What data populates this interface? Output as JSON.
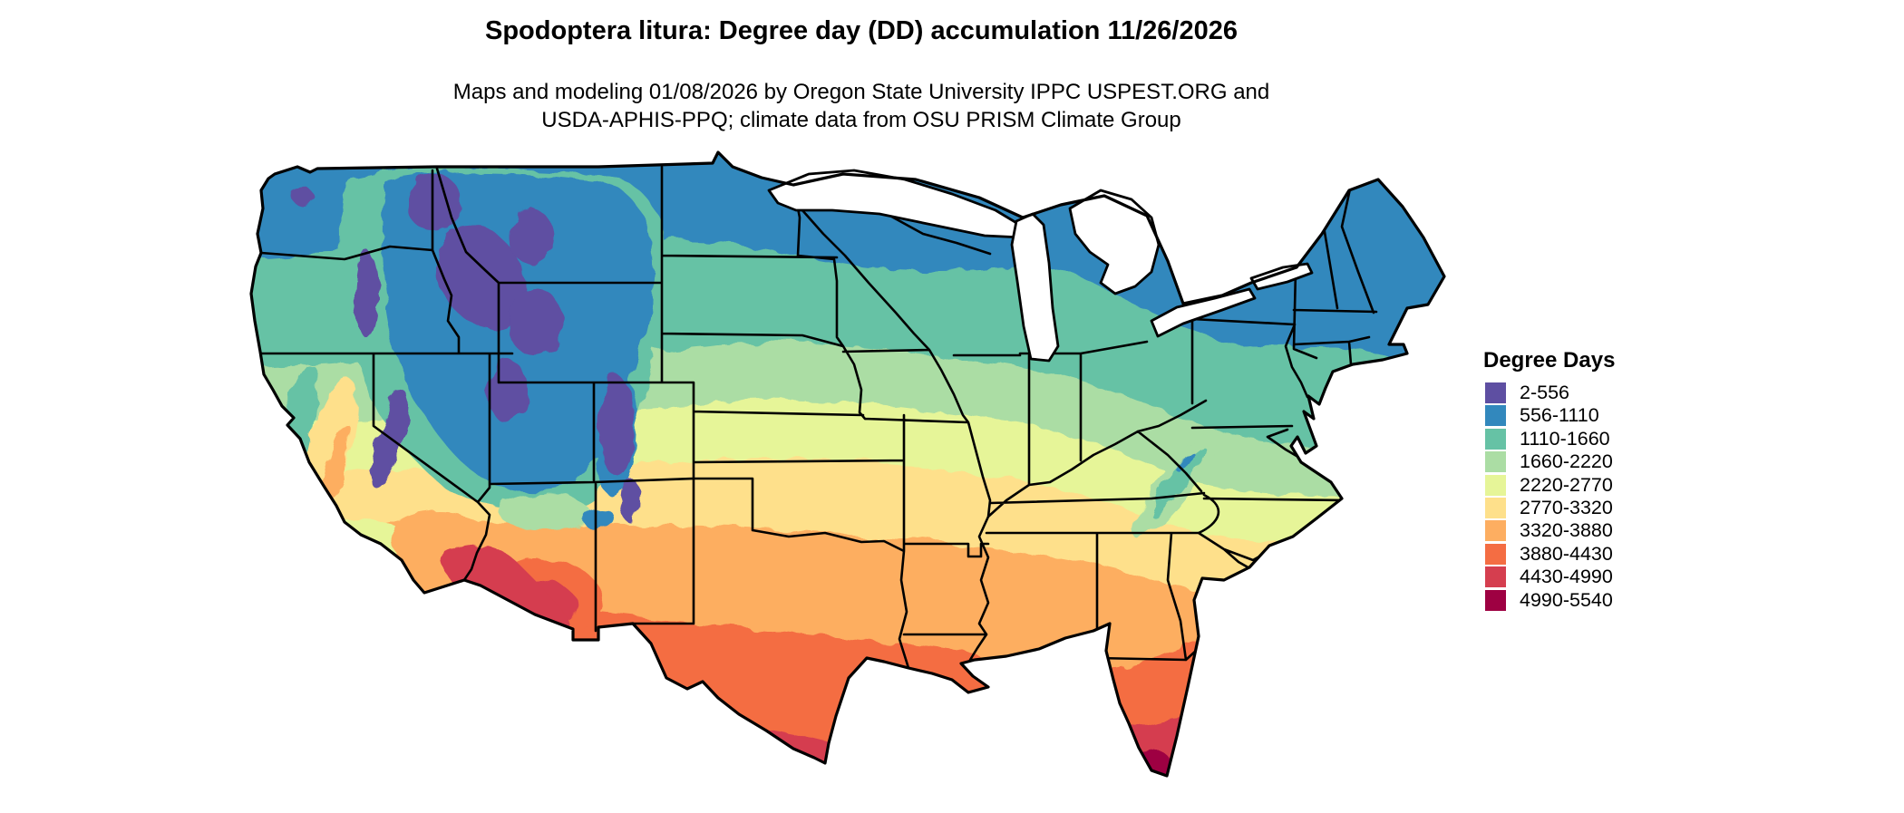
{
  "header": {
    "title": "Spodoptera litura: Degree day (DD) accumulation 11/26/2026",
    "subtitle_line1": "Maps and modeling 01/08/2026 by Oregon State University IPPC USPEST.ORG and",
    "subtitle_line2": "USDA-APHIS-PPQ; climate data from OSU PRISM Climate Group"
  },
  "legend": {
    "title": "Degree Days",
    "bins": [
      {
        "label": "2-556",
        "color": "#5e4fa2"
      },
      {
        "label": "556-1110",
        "color": "#3288bd"
      },
      {
        "label": "1110-1660",
        "color": "#66c2a5"
      },
      {
        "label": "1660-2220",
        "color": "#abdda4"
      },
      {
        "label": "2220-2770",
        "color": "#e6f598"
      },
      {
        "label": "2770-3320",
        "color": "#fee08b"
      },
      {
        "label": "3320-3880",
        "color": "#fdae61"
      },
      {
        "label": "3880-4430",
        "color": "#f46d43"
      },
      {
        "label": "4430-4990",
        "color": "#d53e4f"
      },
      {
        "label": "4990-5540",
        "color": "#9e0142"
      }
    ]
  },
  "map": {
    "region": "Conterminous United States",
    "kind": "degree-day accumulation choropleth raster with state boundaries",
    "water_color": "#ffffff",
    "boundary_color": "#000000"
  }
}
